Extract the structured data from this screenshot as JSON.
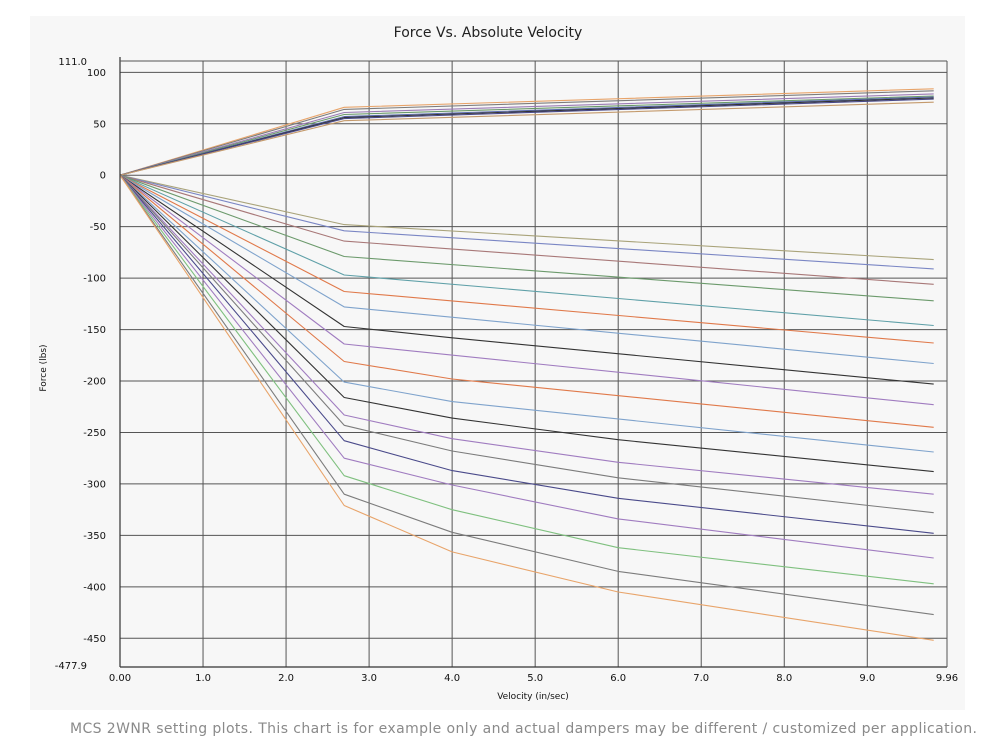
{
  "caption": "MCS 2WNR setting plots. This chart is for example only and actual dampers may be different / customized per application.",
  "chart_data": {
    "type": "line",
    "title": "Force Vs. Absolute Velocity",
    "xlabel": "Velocity (in/sec)",
    "ylabel": "Force (lbs)",
    "xlim": [
      0,
      9.96
    ],
    "ylim": [
      -477.9,
      111.0
    ],
    "x_ticks": [
      "0.00",
      "1.0",
      "2.0",
      "3.0",
      "4.0",
      "5.0",
      "6.0",
      "7.0",
      "8.0",
      "9.0",
      "9.96"
    ],
    "y_ticks": [
      "100",
      "50",
      "0",
      "-50",
      "-100",
      "-150",
      "-200",
      "-250",
      "-300",
      "-350",
      "-400",
      "-450"
    ],
    "y_extent_labels": [
      "111.0",
      "-477.9"
    ],
    "grid": true,
    "series": [
      {
        "color": "#e8a46a",
        "points": [
          [
            0,
            0
          ],
          [
            2.7,
            66
          ],
          [
            9.8,
            84
          ]
        ]
      },
      {
        "color": "#7c7c7c",
        "points": [
          [
            0,
            0
          ],
          [
            2.7,
            64
          ],
          [
            9.8,
            82
          ]
        ]
      },
      {
        "color": "#9b7bb5",
        "points": [
          [
            0,
            0
          ],
          [
            2.7,
            61
          ],
          [
            9.8,
            79
          ]
        ]
      },
      {
        "color": "#6a9a6a",
        "points": [
          [
            0,
            0
          ],
          [
            2.7,
            59
          ],
          [
            9.8,
            77
          ]
        ]
      },
      {
        "color": "#5b6bb0",
        "points": [
          [
            0,
            0
          ],
          [
            2.7,
            57
          ],
          [
            9.8,
            76
          ]
        ]
      },
      {
        "color": "#333333",
        "points": [
          [
            0,
            0
          ],
          [
            2.7,
            56
          ],
          [
            9.8,
            75
          ]
        ]
      },
      {
        "color": "#4a4a8a",
        "points": [
          [
            0,
            0
          ],
          [
            2.7,
            55
          ],
          [
            9.8,
            74
          ]
        ]
      },
      {
        "color": "#c49a6c",
        "points": [
          [
            0,
            0
          ],
          [
            2.7,
            53
          ],
          [
            9.8,
            71
          ]
        ]
      },
      {
        "color": "#a9a37a",
        "points": [
          [
            0,
            0
          ],
          [
            2.7,
            -48
          ],
          [
            9.8,
            -82
          ]
        ]
      },
      {
        "color": "#7a86c4",
        "points": [
          [
            0,
            0
          ],
          [
            2.7,
            -54
          ],
          [
            9.8,
            -91
          ]
        ]
      },
      {
        "color": "#a87878",
        "points": [
          [
            0,
            0
          ],
          [
            2.7,
            -64
          ],
          [
            9.8,
            -106
          ]
        ]
      },
      {
        "color": "#6c9a6c",
        "points": [
          [
            0,
            0
          ],
          [
            2.7,
            -79
          ],
          [
            9.8,
            -122
          ]
        ]
      },
      {
        "color": "#5fa0a8",
        "points": [
          [
            0,
            0
          ],
          [
            2.7,
            -97
          ],
          [
            9.8,
            -146
          ]
        ]
      },
      {
        "color": "#e0794a",
        "points": [
          [
            0,
            0
          ],
          [
            2.7,
            -113
          ],
          [
            9.8,
            -163
          ]
        ]
      },
      {
        "color": "#7fa3cc",
        "points": [
          [
            0,
            0
          ],
          [
            2.7,
            -128
          ],
          [
            9.8,
            -183
          ]
        ]
      },
      {
        "color": "#333333",
        "points": [
          [
            0,
            0
          ],
          [
            2.7,
            -147
          ],
          [
            4.0,
            -158
          ],
          [
            9.8,
            -203
          ]
        ]
      },
      {
        "color": "#a07cc0",
        "points": [
          [
            0,
            0
          ],
          [
            2.7,
            -164
          ],
          [
            9.8,
            -223
          ]
        ]
      },
      {
        "color": "#e0794a",
        "points": [
          [
            0,
            0
          ],
          [
            2.7,
            -181
          ],
          [
            4.0,
            -198
          ],
          [
            9.8,
            -245
          ]
        ]
      },
      {
        "color": "#7fa3cc",
        "points": [
          [
            0,
            0
          ],
          [
            2.7,
            -201
          ],
          [
            4.0,
            -220
          ],
          [
            9.8,
            -269
          ]
        ]
      },
      {
        "color": "#333333",
        "points": [
          [
            0,
            0
          ],
          [
            2.7,
            -216
          ],
          [
            4.0,
            -236
          ],
          [
            6.0,
            -257
          ],
          [
            9.8,
            -288
          ]
        ]
      },
      {
        "color": "#a07cc0",
        "points": [
          [
            0,
            0
          ],
          [
            2.7,
            -233
          ],
          [
            4.0,
            -256
          ],
          [
            6.0,
            -279
          ],
          [
            9.8,
            -310
          ]
        ]
      },
      {
        "color": "#7c7c7c",
        "points": [
          [
            0,
            0
          ],
          [
            2.7,
            -243
          ],
          [
            4.0,
            -268
          ],
          [
            6.0,
            -294
          ],
          [
            9.8,
            -328
          ]
        ]
      },
      {
        "color": "#4a4a8a",
        "points": [
          [
            0,
            0
          ],
          [
            2.7,
            -258
          ],
          [
            4.0,
            -287
          ],
          [
            6.0,
            -314
          ],
          [
            9.8,
            -348
          ]
        ]
      },
      {
        "color": "#a07cc0",
        "points": [
          [
            0,
            0
          ],
          [
            2.7,
            -275
          ],
          [
            4.0,
            -301
          ],
          [
            6.0,
            -334
          ],
          [
            9.8,
            -372
          ]
        ]
      },
      {
        "color": "#7fc07f",
        "points": [
          [
            0,
            0
          ],
          [
            2.7,
            -292
          ],
          [
            4.0,
            -325
          ],
          [
            6.0,
            -362
          ],
          [
            9.8,
            -397
          ]
        ]
      },
      {
        "color": "#7c7c7c",
        "points": [
          [
            0,
            0
          ],
          [
            2.7,
            -310
          ],
          [
            4.0,
            -347
          ],
          [
            6.0,
            -385
          ],
          [
            9.8,
            -427
          ]
        ]
      },
      {
        "color": "#e8a46a",
        "points": [
          [
            0,
            0
          ],
          [
            2.7,
            -321
          ],
          [
            4.0,
            -366
          ],
          [
            6.0,
            -405
          ],
          [
            9.8,
            -452
          ]
        ]
      }
    ]
  }
}
